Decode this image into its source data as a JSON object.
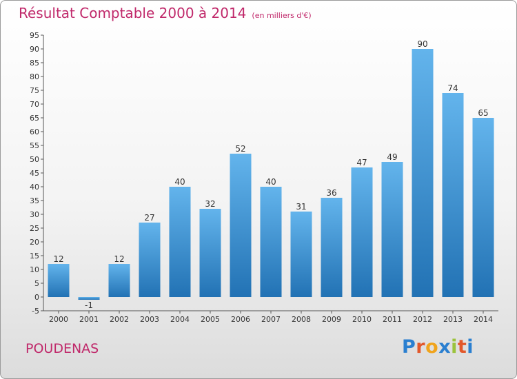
{
  "title": "Résultat Comptable 2000 à 2014",
  "subtitle": "(en milliers d'€)",
  "commune": "POUDENAS",
  "logo": {
    "text": "Proxiti",
    "letter_colors": [
      "#2a7fd0",
      "#e2582b",
      "#f0a41c",
      "#2a7fd0",
      "#9bc33b",
      "#e2582b",
      "#2a7fd0"
    ]
  },
  "colors": {
    "title": "#c0286a",
    "bar_top": "#63b4ec",
    "bar_bottom": "#2272b4",
    "axis": "#555555"
  },
  "chart_data": {
    "type": "bar",
    "categories": [
      "2000",
      "2001",
      "2002",
      "2003",
      "2004",
      "2005",
      "2006",
      "2007",
      "2008",
      "2009",
      "2010",
      "2011",
      "2012",
      "2013",
      "2014"
    ],
    "values": [
      12,
      -1,
      12,
      27,
      40,
      32,
      52,
      40,
      31,
      36,
      47,
      49,
      90,
      74,
      65
    ],
    "ylim": [
      -5,
      95
    ],
    "yticks": [
      -5,
      0,
      5,
      10,
      15,
      20,
      25,
      30,
      35,
      40,
      45,
      50,
      55,
      60,
      65,
      70,
      75,
      80,
      85,
      90,
      95
    ],
    "grid": false,
    "legend": "none"
  }
}
